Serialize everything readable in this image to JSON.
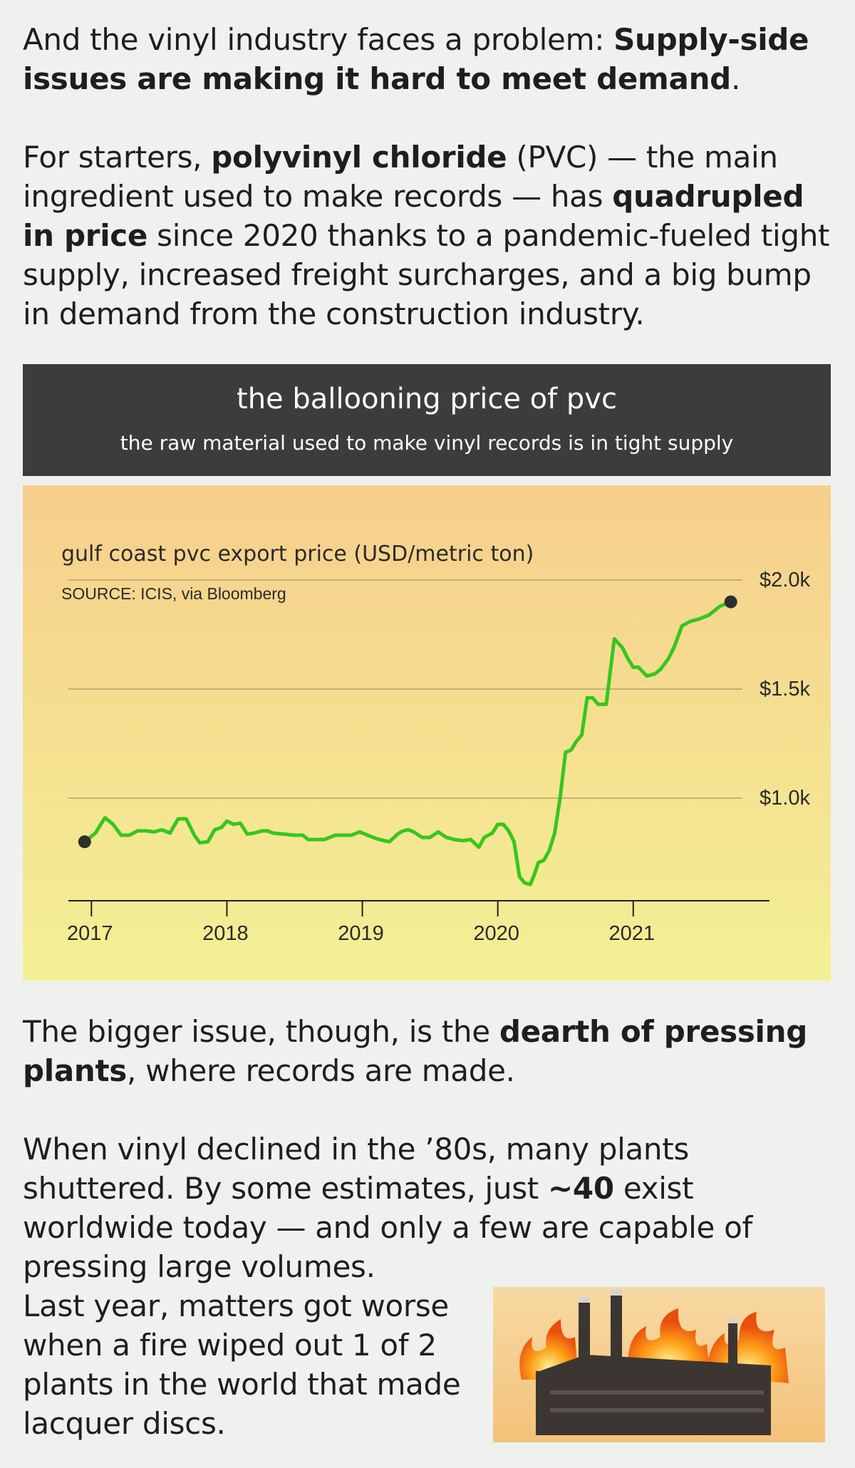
{
  "paragraphs": {
    "p1": [
      {
        "text": "And the vinyl industry faces a problem: ",
        "bold": false
      },
      {
        "text": "Supply-side issues are making it hard to meet demand",
        "bold": true
      },
      {
        "text": ".",
        "bold": false
      }
    ],
    "p2": [
      {
        "text": "For starters, ",
        "bold": false
      },
      {
        "text": "polyvinyl chloride",
        "bold": true
      },
      {
        "text": " (PVC) — the main ingredient used to make records — has ",
        "bold": false
      },
      {
        "text": "quadrupled in price",
        "bold": true
      },
      {
        "text": " since 2020 thanks to a pandemic-fueled tight supply, increased freight surcharges, and a big bump in demand from the construction industry.",
        "bold": false
      }
    ],
    "p3": [
      {
        "text": "The bigger issue, though, is the ",
        "bold": false
      },
      {
        "text": "dearth of pressing plants",
        "bold": true
      },
      {
        "text": ", where records are made.",
        "bold": false
      }
    ],
    "p4": [
      {
        "text": "When vinyl declined in the ’80s, many plants shuttered. By some estimates, just ",
        "bold": false
      },
      {
        "text": "~40",
        "bold": true
      },
      {
        "text": " exist worldwide today — and only a few are capable of pressing large volumes.",
        "bold": false
      }
    ],
    "p5": [
      {
        "text": "Last year, matters got worse when a fire wiped out 1 of 2 plants in the world that made lacquer discs.",
        "bold": false
      }
    ]
  },
  "chart_header": {
    "title": "the ballooning price of pvc",
    "subtitle": "the raw material used to make vinyl records is in tight supply"
  },
  "chart_data": {
    "type": "line",
    "title": "gulf coast pvc export price (USD/metric ton)",
    "source": "SOURCE: ICIS, via Bloomberg",
    "x_tick_labels": [
      "2017",
      "2018",
      "2019",
      "2020",
      "2021"
    ],
    "y_tick_labels": [
      "$1.0k",
      "$1.5k",
      "$2.0k"
    ],
    "y_ticks": [
      1000,
      1500,
      2000
    ],
    "x_ticks": [
      2017,
      2018,
      2019,
      2020,
      2021
    ],
    "xlim": [
      2016.83,
      2021.99
    ],
    "ylim": [
      500,
      2000
    ],
    "grid": true,
    "series_color": "#37c61d",
    "point_color": "#2f2f2f",
    "series": [
      {
        "x": [
          2016.95,
          2017.03,
          2017.1,
          2017.16,
          2017.22,
          2017.28,
          2017.34,
          2017.4,
          2017.46,
          2017.52,
          2017.58,
          2017.64,
          2017.7,
          2017.76,
          2017.8,
          2017.86,
          2017.91,
          2017.96,
          2018.0,
          2018.05,
          2018.1,
          2018.15,
          2018.2,
          2018.26,
          2018.3,
          2018.34,
          2018.42,
          2018.5,
          2018.56,
          2018.6,
          2018.66,
          2018.72,
          2018.8,
          2018.86,
          2018.92,
          2018.98,
          2019.04,
          2019.1,
          2019.16,
          2019.2,
          2019.26,
          2019.3,
          2019.34,
          2019.38,
          2019.44,
          2019.5,
          2019.56,
          2019.62,
          2019.68,
          2019.74,
          2019.8,
          2019.86,
          2019.9,
          2019.96,
          2020.0,
          2020.04,
          2020.08,
          2020.12,
          2020.16,
          2020.2,
          2020.24,
          2020.27,
          2020.3,
          2020.34,
          2020.38,
          2020.42,
          2020.46,
          2020.5,
          2020.54,
          2020.58,
          2020.62,
          2020.66,
          2020.7,
          2020.74,
          2020.8,
          2020.86,
          2020.92,
          2020.96,
          2021.0,
          2021.04,
          2021.1,
          2021.16,
          2021.2,
          2021.26,
          2021.3,
          2021.36,
          2021.42,
          2021.48,
          2021.52,
          2021.56,
          2021.6,
          2021.64,
          2021.68,
          2021.72
        ],
        "values": [
          800,
          840,
          910,
          880,
          830,
          830,
          850,
          850,
          845,
          855,
          840,
          905,
          905,
          830,
          795,
          800,
          855,
          865,
          895,
          880,
          885,
          835,
          840,
          850,
          850,
          840,
          835,
          830,
          830,
          810,
          810,
          810,
          830,
          830,
          830,
          845,
          830,
          815,
          805,
          800,
          835,
          850,
          855,
          845,
          820,
          820,
          845,
          820,
          810,
          805,
          810,
          775,
          820,
          840,
          880,
          880,
          850,
          800,
          640,
          610,
          605,
          650,
          705,
          715,
          760,
          840,
          1000,
          1210,
          1220,
          1260,
          1290,
          1460,
          1460,
          1430,
          1430,
          1730,
          1690,
          1640,
          1600,
          1600,
          1560,
          1570,
          1590,
          1640,
          1690,
          1790,
          1810,
          1820,
          1830,
          1840,
          1860,
          1880,
          1890,
          1900
        ]
      }
    ],
    "start_value": 800,
    "end_value": 1900
  },
  "image": {
    "name": "burning factory illustration",
    "colors": [
      "#f6c98a",
      "#3b3632",
      "#ff7a10"
    ]
  }
}
